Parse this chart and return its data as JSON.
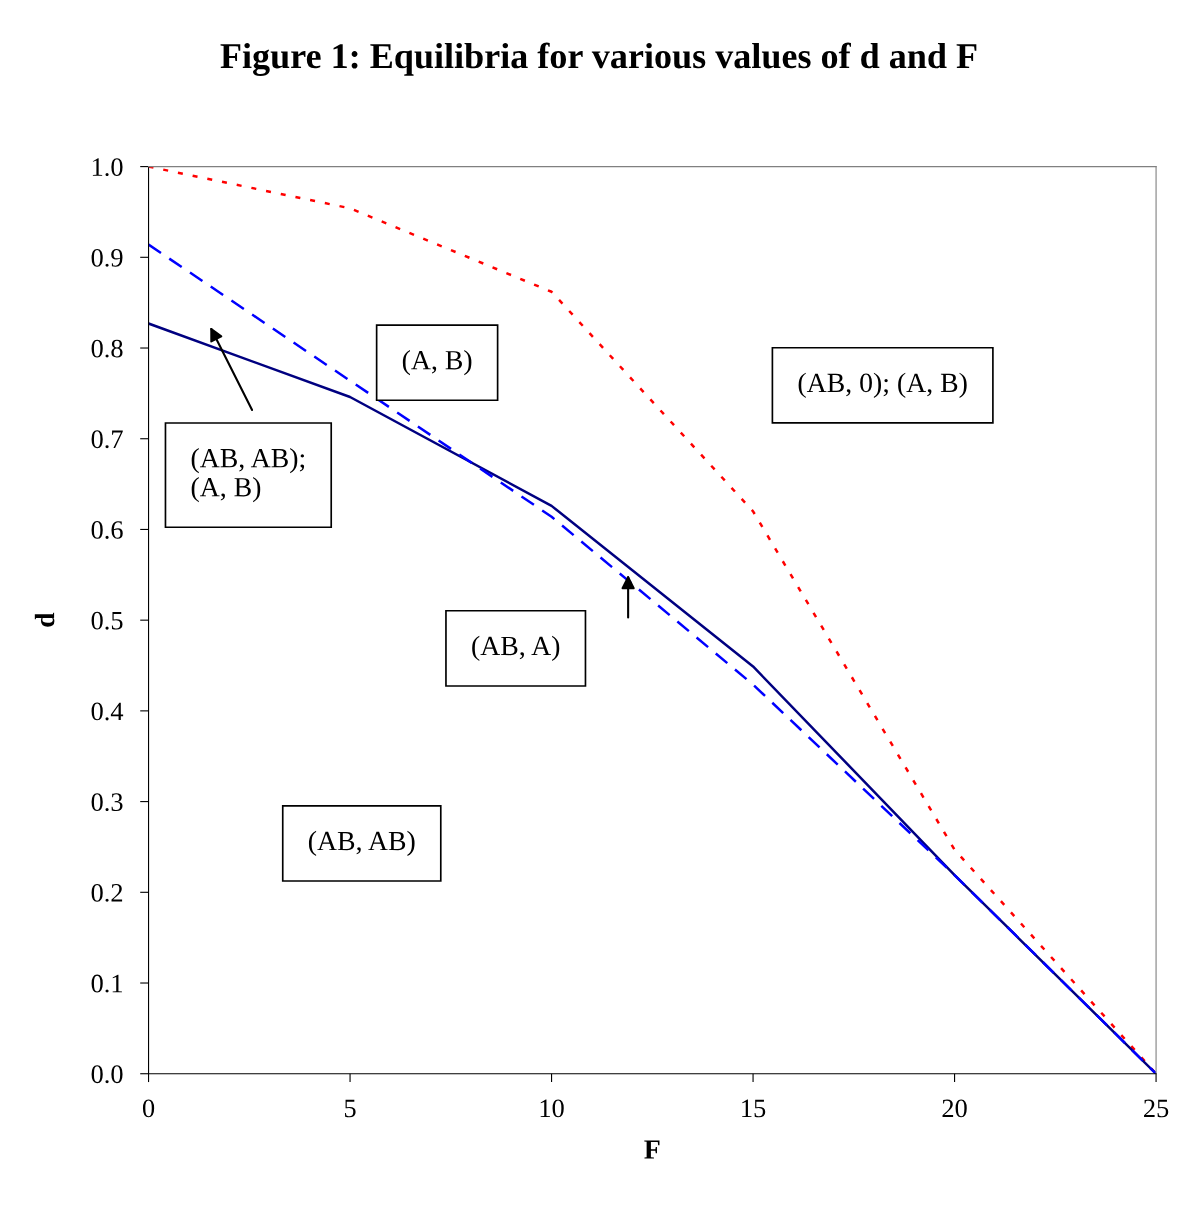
{
  "chart_data": {
    "type": "line",
    "title": "Figure 1: Equilibria for various values of d and F",
    "xlabel": "F",
    "ylabel": "d",
    "x": [
      0,
      5,
      10,
      15,
      20,
      25
    ],
    "series": [
      {
        "color": "#ff0000",
        "line_style": "dotted",
        "values": [
          1.0,
          0.954,
          0.862,
          0.62,
          0.247,
          0.0
        ]
      },
      {
        "color": "#000080",
        "line_style": "solid",
        "values": [
          0.827,
          0.746,
          0.626,
          0.449,
          0.219,
          0.0
        ]
      },
      {
        "color": "#0000ff",
        "line_style": "dashed",
        "values": [
          0.914,
          0.764,
          0.614,
          0.429,
          0.219,
          0.0
        ]
      }
    ],
    "xlim": [
      0,
      25
    ],
    "xticks": [
      0,
      5,
      10,
      15,
      20,
      25
    ],
    "ylim": [
      0,
      1
    ],
    "yticks": [
      {
        "value": 0,
        "label": "0.0"
      },
      {
        "value": 0.1,
        "label": "0.1"
      },
      {
        "value": 0.2,
        "label": "0.2"
      },
      {
        "value": 0.3,
        "label": "0.3"
      },
      {
        "value": 0.4,
        "label": "0.4"
      },
      {
        "value": 0.5,
        "label": "0.5"
      },
      {
        "value": 0.6,
        "label": "0.6"
      },
      {
        "value": 0.7,
        "label": "0.7"
      },
      {
        "value": 0.8,
        "label": "0.8"
      },
      {
        "value": 0.9,
        "label": "0.9"
      },
      {
        "value": 1.0,
        "label": "1.0"
      }
    ],
    "grid": false,
    "legend": false,
    "marker": "none",
    "annotations": [
      "(A, B)",
      "(AB, 0); (A, B)",
      "(AB, AB);\n(A, B)",
      "(AB, A)",
      "(AB, AB)"
    ]
  }
}
